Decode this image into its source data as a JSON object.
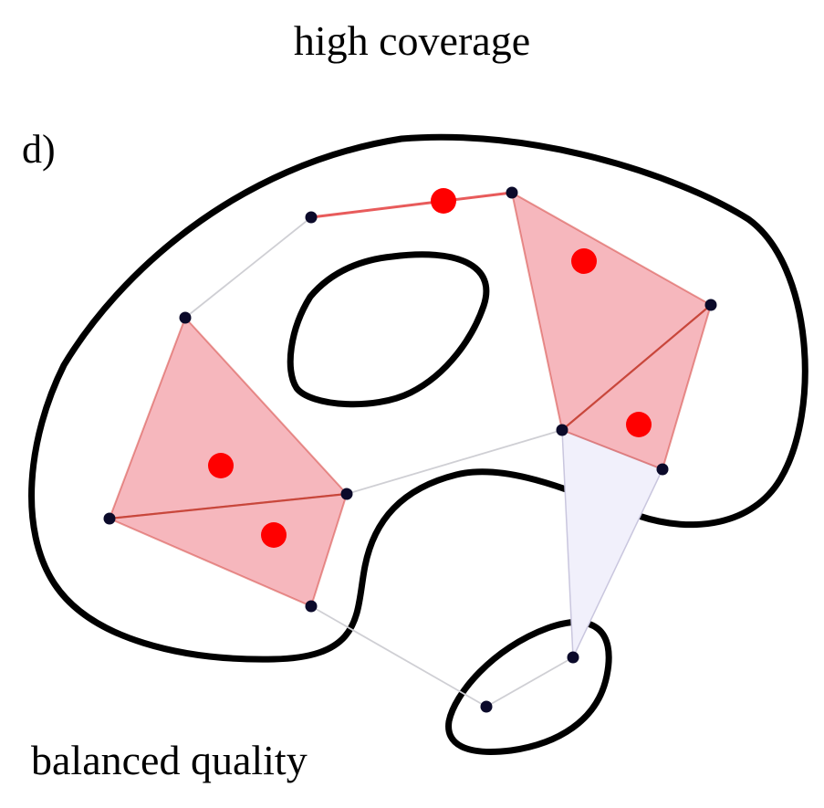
{
  "figure": {
    "panel_label": "d)",
    "top_label": "high coverage",
    "bottom_label": "balanced quality"
  },
  "colors": {
    "outline": "#000000",
    "vertex": "#0b0a2a",
    "edge": "#cfcfd4",
    "selected_fill": "#f6b7bd",
    "selected_edge": "#d9534f",
    "highlight_edge": "#e85b5b",
    "marker": "#ff0000",
    "faint_fill": "#f1f0fb"
  }
}
